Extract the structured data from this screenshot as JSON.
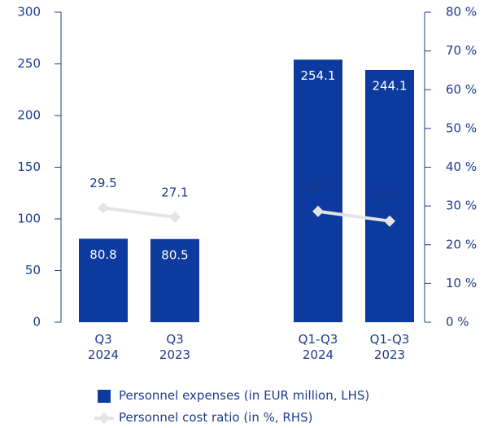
{
  "chart_data": {
    "type": "bar_line",
    "categories": [
      "Q3 2024",
      "Q3 2023",
      null,
      "Q1-Q3 2024",
      "Q1-Q3 2023"
    ],
    "series": [
      {
        "name": "Personnel expenses (in EUR million, LHS)",
        "type": "bar",
        "color": "#0c3a9e",
        "values": [
          80.8,
          80.5,
          null,
          254.1,
          244.1
        ]
      },
      {
        "name": "Personnel cost ratio (in %, RHS)",
        "type": "line",
        "axis": "y2",
        "color": "#e4e4e4",
        "values": [
          29.5,
          27.1,
          null,
          28.6,
          26.1
        ]
      }
    ],
    "ylim": [
      0,
      300
    ],
    "yticks": [
      0,
      50,
      100,
      150,
      200,
      250,
      300
    ],
    "y2lim": [
      0,
      80
    ],
    "y2ticks": [
      {
        "value": 0,
        "label": "0 %"
      },
      {
        "value": 10,
        "label": "10 %"
      },
      {
        "value": 20,
        "label": "20 %"
      },
      {
        "value": 30,
        "label": "30 %"
      },
      {
        "value": 40,
        "label": "40 %"
      },
      {
        "value": 50,
        "label": "50 %"
      },
      {
        "value": 60,
        "label": "60 %"
      },
      {
        "value": 70,
        "label": "70 %"
      },
      {
        "value": 80,
        "label": "80 %"
      }
    ],
    "grid": false
  }
}
